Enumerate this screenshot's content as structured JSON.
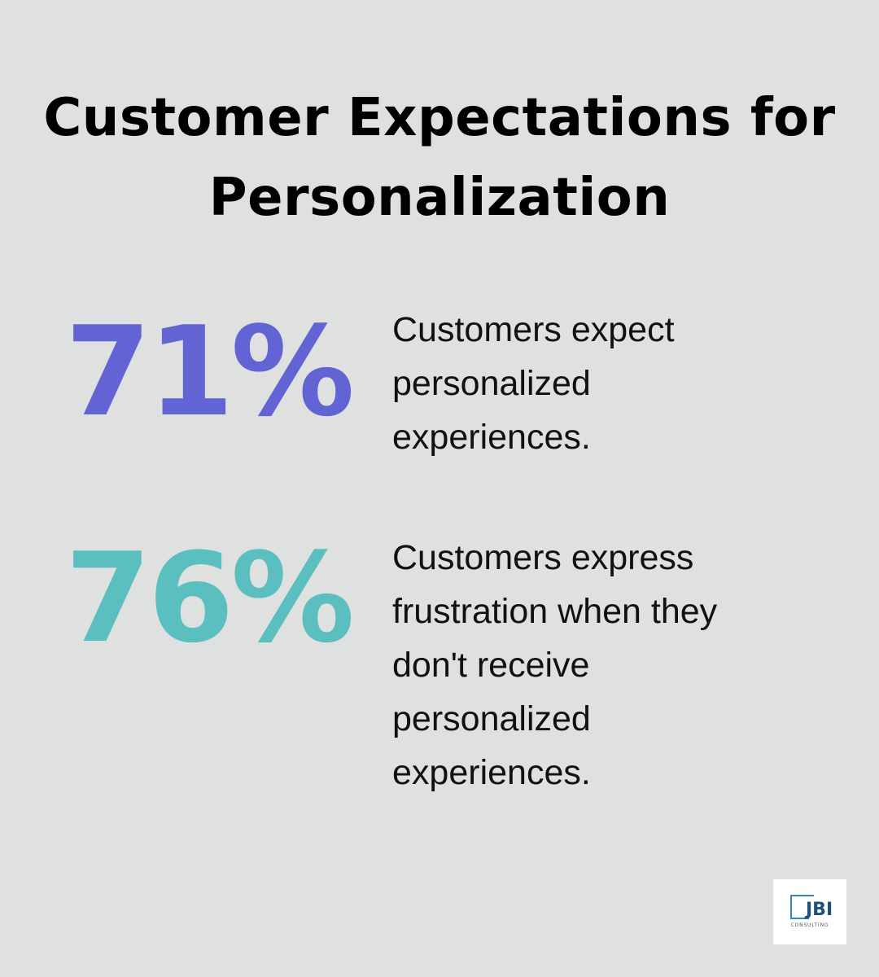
{
  "title": {
    "line1": "Customer Expectations for",
    "line2": "Personalization"
  },
  "stats": [
    {
      "value": "71%",
      "color": "#6264d4",
      "description": [
        "Customers expect",
        "personalized",
        "experiences."
      ]
    },
    {
      "value": "76%",
      "color": "#5bbfbf",
      "description": [
        "Customers express",
        "frustration when they",
        "don't receive",
        "personalized",
        "experiences."
      ]
    }
  ],
  "logo": {
    "brand": "JBI",
    "sub": "CONSULTING"
  }
}
